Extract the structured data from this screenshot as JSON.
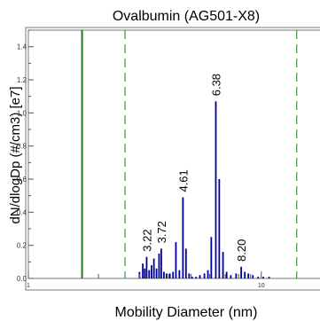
{
  "chart_data": {
    "type": "bar",
    "title": "Ovalbumin (AG501-X8)",
    "xlabel": "Mobility Diameter (nm)",
    "ylabel": "dN/dlogDp (#/cm3) [e7]",
    "xscale": "log",
    "xlim": [
      1,
      19
    ],
    "ylim": [
      0,
      1.5
    ],
    "y_ticks": [
      "0.0",
      "0.2",
      "0.4",
      "0.6",
      "0.8",
      "1.0",
      "1.2",
      "1.4"
    ],
    "x_tick_labels": [
      {
        "value": 1,
        "label": "1"
      },
      {
        "value": 10,
        "label": "10"
      }
    ],
    "grid": false,
    "bar_color": "#0000a0",
    "marker_color": "#1a7f1a",
    "solid_markers": [
      1.7
    ],
    "dashed_markers": [
      2.6,
      14.2
    ],
    "bars": [
      {
        "x": 3.0,
        "y": 0.04
      },
      {
        "x": 3.1,
        "y": 0.09
      },
      {
        "x": 3.16,
        "y": 0.06
      },
      {
        "x": 3.22,
        "y": 0.13
      },
      {
        "x": 3.3,
        "y": 0.05
      },
      {
        "x": 3.38,
        "y": 0.08
      },
      {
        "x": 3.46,
        "y": 0.12
      },
      {
        "x": 3.55,
        "y": 0.06
      },
      {
        "x": 3.64,
        "y": 0.15
      },
      {
        "x": 3.72,
        "y": 0.18
      },
      {
        "x": 3.82,
        "y": 0.04
      },
      {
        "x": 3.92,
        "y": 0.03
      },
      {
        "x": 4.05,
        "y": 0.03
      },
      {
        "x": 4.18,
        "y": 0.04
      },
      {
        "x": 4.3,
        "y": 0.22
      },
      {
        "x": 4.45,
        "y": 0.05
      },
      {
        "x": 4.61,
        "y": 0.49
      },
      {
        "x": 4.75,
        "y": 0.18
      },
      {
        "x": 4.9,
        "y": 0.03
      },
      {
        "x": 5.05,
        "y": 0.01
      },
      {
        "x": 5.25,
        "y": 0.01
      },
      {
        "x": 5.45,
        "y": 0.02
      },
      {
        "x": 5.7,
        "y": 0.03
      },
      {
        "x": 5.9,
        "y": 0.05
      },
      {
        "x": 6.1,
        "y": 0.25
      },
      {
        "x": 6.38,
        "y": 1.07
      },
      {
        "x": 6.6,
        "y": 0.6
      },
      {
        "x": 6.85,
        "y": 0.16
      },
      {
        "x": 7.1,
        "y": 0.04
      },
      {
        "x": 7.4,
        "y": 0.02
      },
      {
        "x": 7.8,
        "y": 0.03
      },
      {
        "x": 8.2,
        "y": 0.07
      },
      {
        "x": 8.5,
        "y": 0.04
      },
      {
        "x": 8.8,
        "y": 0.03
      },
      {
        "x": 9.2,
        "y": 0.02
      },
      {
        "x": 9.7,
        "y": 0.01
      },
      {
        "x": 10.2,
        "y": 0.01
      },
      {
        "x": 10.8,
        "y": 0.01
      }
    ],
    "peak_labels": [
      {
        "x": 3.22,
        "y": 0.13,
        "label": "3.22"
      },
      {
        "x": 3.72,
        "y": 0.18,
        "label": "3.72"
      },
      {
        "x": 4.61,
        "y": 0.49,
        "label": "4.61"
      },
      {
        "x": 6.38,
        "y": 1.07,
        "label": "6.38"
      },
      {
        "x": 8.2,
        "y": 0.07,
        "label": "8.20"
      }
    ]
  }
}
